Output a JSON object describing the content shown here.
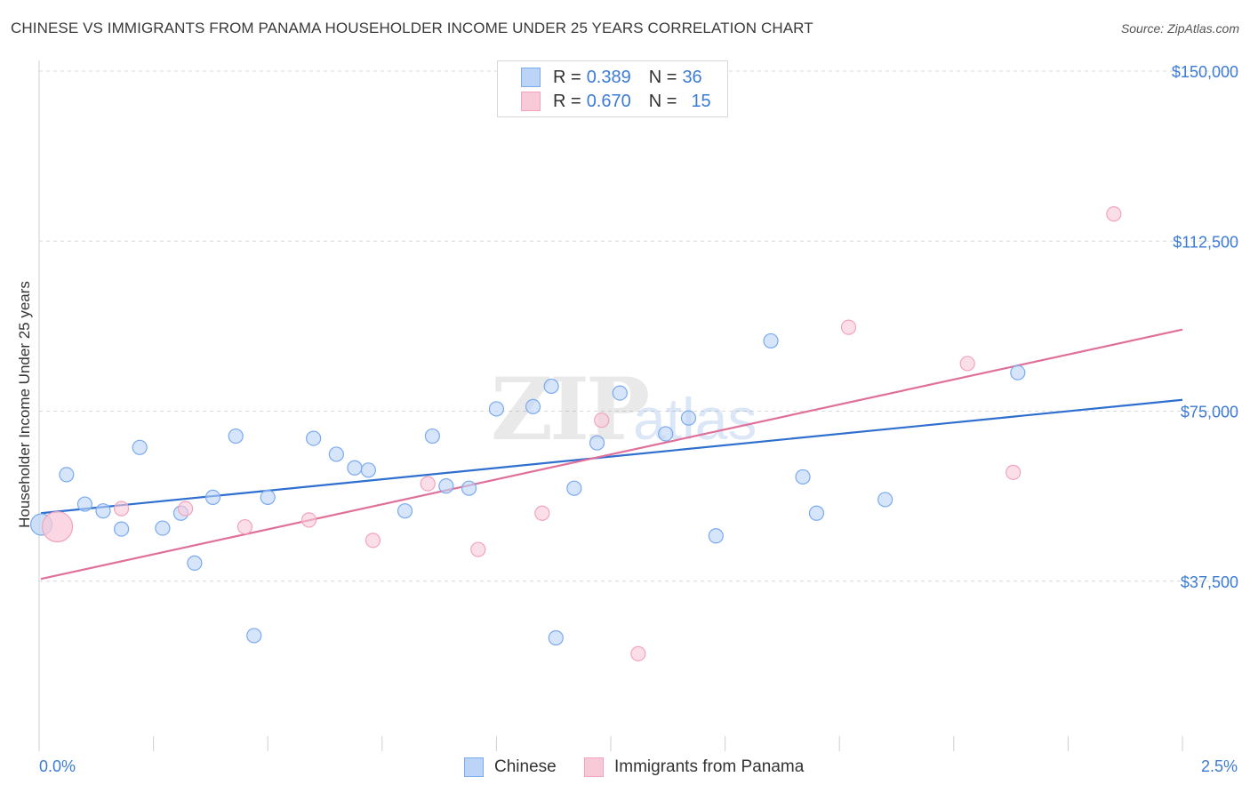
{
  "chart_data": {
    "type": "scatter",
    "title": "CHINESE VS IMMIGRANTS FROM PANAMA HOUSEHOLDER INCOME UNDER 25 YEARS CORRELATION CHART",
    "source": "Source: ZipAtlas.com",
    "xlabel": "",
    "ylabel": "Householder Income Under 25 years",
    "xlim": [
      0,
      2.5
    ],
    "ylim": [
      0,
      156000
    ],
    "x_tick_labels": [
      "0.0%",
      "2.5%"
    ],
    "y_ticks": [
      37500,
      75000,
      112500,
      150000
    ],
    "y_tick_labels": [
      "$37,500",
      "$75,000",
      "$112,500",
      "$150,000"
    ],
    "watermark": {
      "zip": "ZIP",
      "atlas": "atlas"
    },
    "legend": [
      {
        "series": "Chinese",
        "r_label": "R =",
        "r_value": "0.389",
        "n_label": "N =",
        "n_value": "36"
      },
      {
        "series": "Immigrants from Panama",
        "r_label": "R =",
        "r_value": "0.670",
        "n_label": "N =",
        "n_value": "15"
      }
    ],
    "series": [
      {
        "name": "Chinese",
        "color": "#7aaaf0",
        "fill": "#bcd4f6",
        "line_color": "#2e6fd0",
        "trend": {
          "x": [
            0.0,
            2.5
          ],
          "y": [
            52500,
            77500
          ]
        },
        "points": [
          {
            "x": 0.005,
            "y": 50000,
            "big": true
          },
          {
            "x": 0.06,
            "y": 61000
          },
          {
            "x": 0.1,
            "y": 54500
          },
          {
            "x": 0.14,
            "y": 53000
          },
          {
            "x": 0.18,
            "y": 49000
          },
          {
            "x": 0.22,
            "y": 67000
          },
          {
            "x": 0.27,
            "y": 49200
          },
          {
            "x": 0.31,
            "y": 52500
          },
          {
            "x": 0.34,
            "y": 41500
          },
          {
            "x": 0.38,
            "y": 56000
          },
          {
            "x": 0.43,
            "y": 69500
          },
          {
            "x": 0.47,
            "y": 25500
          },
          {
            "x": 0.5,
            "y": 56000
          },
          {
            "x": 0.6,
            "y": 69000
          },
          {
            "x": 0.65,
            "y": 65500
          },
          {
            "x": 0.69,
            "y": 62500
          },
          {
            "x": 0.72,
            "y": 62000
          },
          {
            "x": 0.8,
            "y": 53000
          },
          {
            "x": 0.86,
            "y": 69500
          },
          {
            "x": 0.89,
            "y": 58500
          },
          {
            "x": 0.94,
            "y": 58000
          },
          {
            "x": 1.0,
            "y": 75500
          },
          {
            "x": 1.08,
            "y": 76000
          },
          {
            "x": 1.12,
            "y": 80500
          },
          {
            "x": 1.13,
            "y": 25000
          },
          {
            "x": 1.17,
            "y": 58000
          },
          {
            "x": 1.22,
            "y": 68000
          },
          {
            "x": 1.27,
            "y": 79000
          },
          {
            "x": 1.37,
            "y": 70000
          },
          {
            "x": 1.42,
            "y": 73500
          },
          {
            "x": 1.48,
            "y": 47500
          },
          {
            "x": 1.6,
            "y": 90500
          },
          {
            "x": 1.67,
            "y": 60500
          },
          {
            "x": 1.7,
            "y": 52500
          },
          {
            "x": 1.85,
            "y": 55500
          },
          {
            "x": 2.14,
            "y": 83500
          }
        ]
      },
      {
        "name": "Immigrants from Panama",
        "color": "#f3a3bd",
        "fill": "#f8cad8",
        "line_color": "#e0709a",
        "trend": {
          "x": [
            0.0,
            2.5
          ],
          "y": [
            38000,
            93000
          ]
        },
        "points": [
          {
            "x": 0.04,
            "y": 49500,
            "big": true
          },
          {
            "x": 0.18,
            "y": 53500
          },
          {
            "x": 0.32,
            "y": 53500
          },
          {
            "x": 0.45,
            "y": 49500
          },
          {
            "x": 0.59,
            "y": 51000
          },
          {
            "x": 0.73,
            "y": 46500
          },
          {
            "x": 0.85,
            "y": 59000
          },
          {
            "x": 0.96,
            "y": 44500
          },
          {
            "x": 1.1,
            "y": 52500
          },
          {
            "x": 1.23,
            "y": 73000
          },
          {
            "x": 1.31,
            "y": 21500
          },
          {
            "x": 1.77,
            "y": 93500
          },
          {
            "x": 2.03,
            "y": 85500
          },
          {
            "x": 2.13,
            "y": 61500
          },
          {
            "x": 2.35,
            "y": 118500
          }
        ]
      }
    ]
  }
}
